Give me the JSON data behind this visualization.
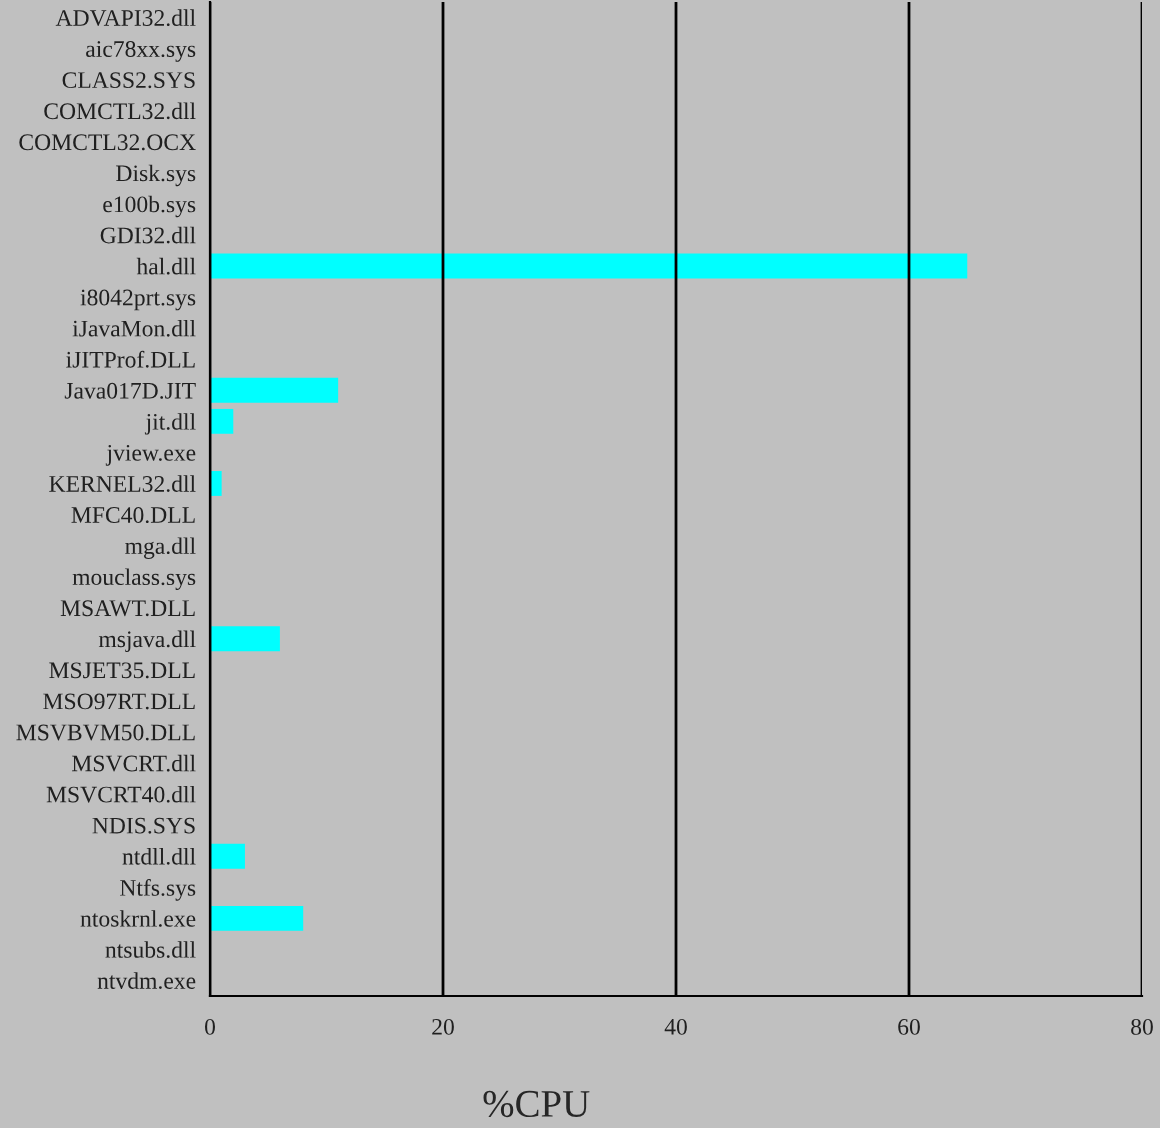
{
  "chart_data": {
    "type": "bar",
    "orientation": "horizontal",
    "xlabel": "%CPU",
    "categories": [
      "ADVAPI32.dll",
      "aic78xx.sys",
      "CLASS2.SYS",
      "COMCTL32.dll",
      "COMCTL32.OCX",
      "Disk.sys",
      "e100b.sys",
      "GDI32.dll",
      "hal.dll",
      "i8042prt.sys",
      "iJavaMon.dll",
      "iJITProf.DLL",
      "Java017D.JIT",
      "jit.dll",
      "jview.exe",
      "KERNEL32.dll",
      "MFC40.DLL",
      "mga.dll",
      "mouclass.sys",
      "MSAWT.DLL",
      "msjava.dll",
      "MSJET35.DLL",
      "MSO97RT.DLL",
      "MSVBVM50.DLL",
      "MSVCRT.dll",
      "MSVCRT40.dll",
      "NDIS.SYS",
      "ntdll.dll",
      "Ntfs.sys",
      "ntoskrnl.exe",
      "ntsubs.dll",
      "ntvdm.exe"
    ],
    "values": [
      0,
      0,
      0,
      0,
      0,
      0,
      0,
      0,
      65,
      0,
      0,
      0,
      11,
      2,
      0,
      1,
      0,
      0,
      0,
      0,
      6,
      0,
      0,
      0,
      0,
      0,
      0,
      3,
      0,
      8,
      0,
      0
    ],
    "color": "#00ffff",
    "xlim": [
      0,
      80
    ],
    "xticks": [
      0,
      20,
      40,
      60,
      80
    ],
    "grid": "x"
  }
}
